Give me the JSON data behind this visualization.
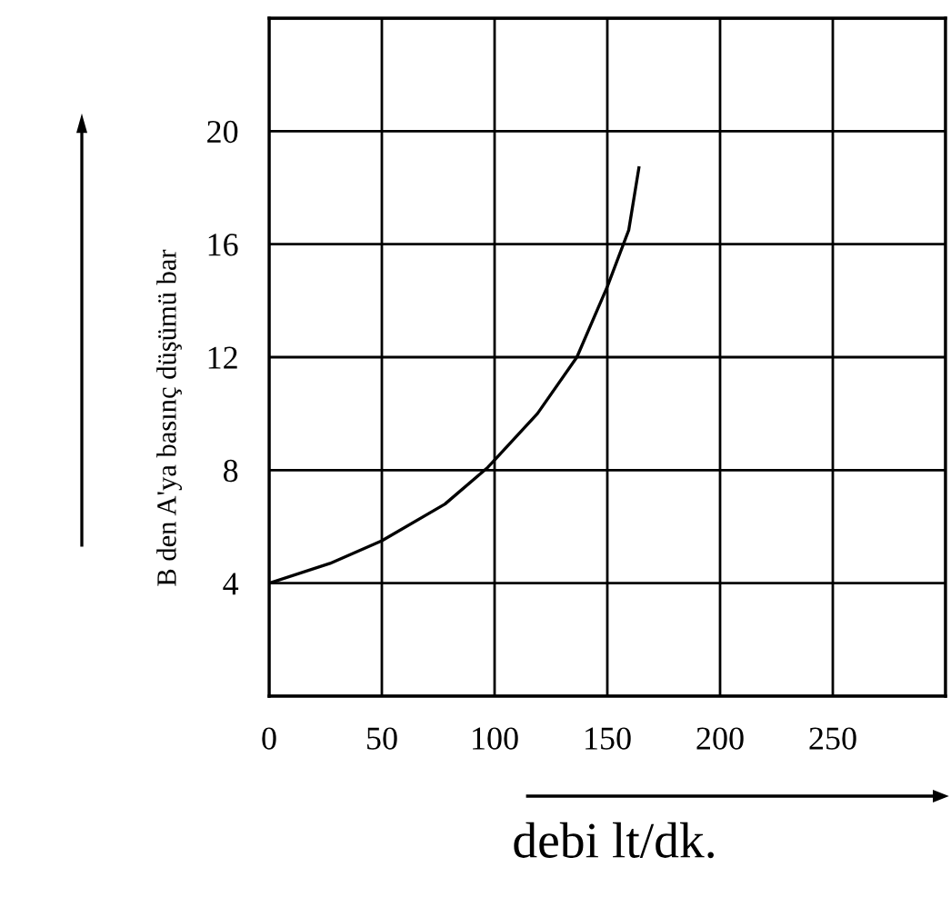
{
  "chart_data": {
    "type": "line",
    "xlabel": "debi lt/dk.",
    "ylabel": "B den A'ya basınç düşümü bar",
    "x": [
      0,
      27,
      50,
      78,
      97,
      119,
      136.5,
      150,
      159.5,
      164
    ],
    "series": [
      {
        "color": "#000000",
        "values": [
          4,
          4.7,
          5.5,
          6.8,
          8.1,
          10,
          12,
          14.5,
          16.5,
          18.7
        ]
      }
    ],
    "xlim": [
      0,
      300
    ],
    "xticks": [
      0,
      50,
      100,
      150,
      200,
      250,
      {
        "value": 300,
        "label": null
      }
    ],
    "ylim": [
      0,
      24
    ],
    "yticks": [
      {
        "value": 0,
        "label": null
      },
      4,
      8,
      12,
      16,
      20,
      {
        "value": 24,
        "label": null
      }
    ],
    "grid": true,
    "legend": false,
    "marker": "none",
    "line_style": "solid"
  }
}
